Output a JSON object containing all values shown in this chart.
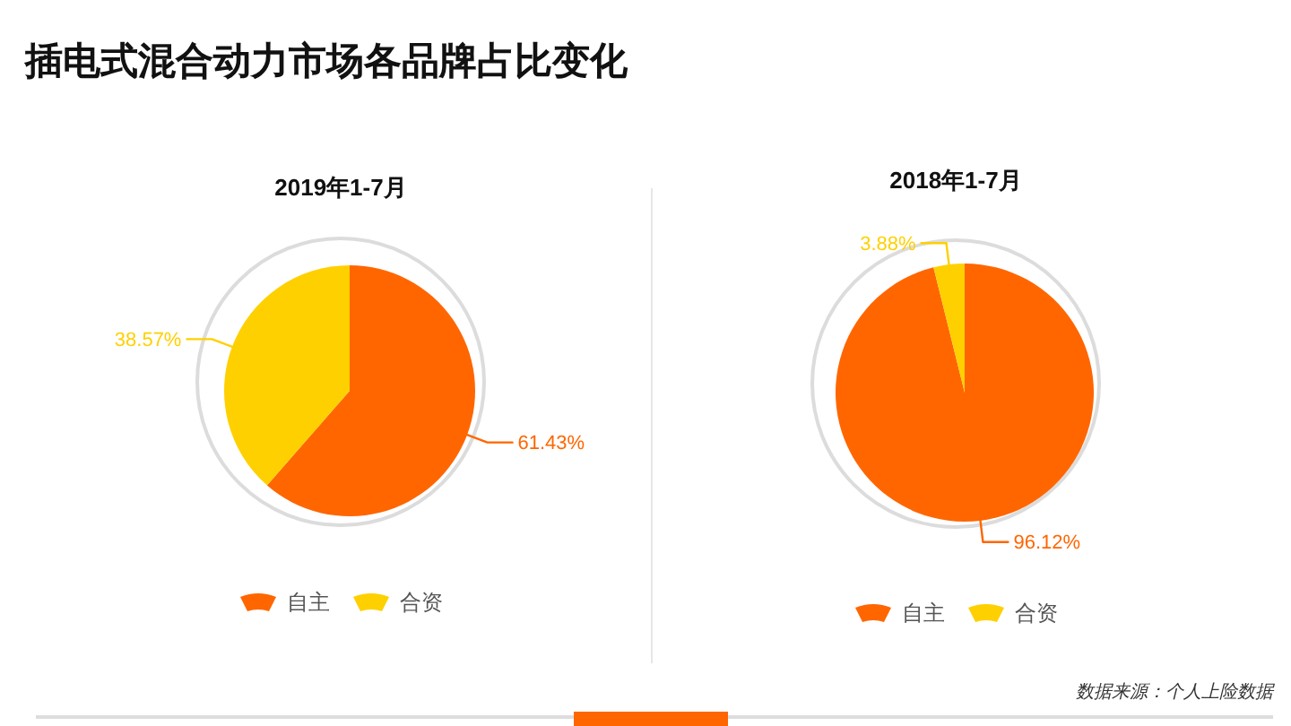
{
  "chart_data": [
    {
      "type": "pie",
      "title": "插电式混合动力市场各品牌占比变化",
      "subtitle": "2019年1-7月",
      "categories": [
        "自主",
        "合资"
      ],
      "values": [
        61.43,
        38.57
      ],
      "colors": [
        "#ff6600",
        "#ffd000"
      ],
      "value_labels": [
        "61.43%",
        "38.57%"
      ],
      "legend": "bottom"
    },
    {
      "type": "pie",
      "subtitle": "2018年1-7月",
      "categories": [
        "自主",
        "合资"
      ],
      "values": [
        96.12,
        3.88
      ],
      "colors": [
        "#ff6600",
        "#ffd000"
      ],
      "value_labels": [
        "96.12%",
        "3.88%"
      ],
      "legend": "bottom",
      "annotations": [
        "数据来源：个人上险数据"
      ]
    }
  ]
}
